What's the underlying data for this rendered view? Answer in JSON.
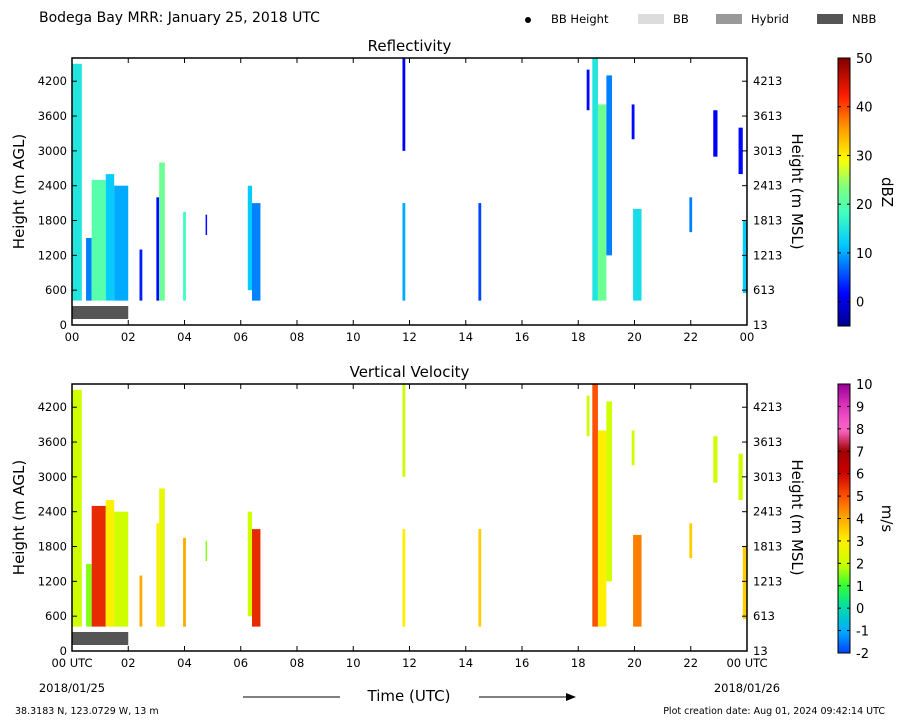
{
  "header": {
    "title": "Bodega Bay MRR:  January 25, 2018 UTC"
  },
  "legend": {
    "items": [
      {
        "label": "BB Height",
        "kind": "dot",
        "color": "#000000"
      },
      {
        "label": "BB",
        "kind": "swatch",
        "color": "#dcdcdc"
      },
      {
        "label": "Hybrid",
        "kind": "swatch",
        "color": "#999999"
      },
      {
        "label": "NBB",
        "kind": "swatch",
        "color": "#555555"
      }
    ]
  },
  "footer": {
    "location": "38.3183 N, 123.0729 W, 13 m",
    "creation": "Plot creation date: Aug 01, 2024 09:42:14 UTC",
    "date_start": "2018/01/25",
    "date_end": "2018/01/26",
    "xaxis_title": "Time (UTC)"
  },
  "chart_data": [
    {
      "type": "heatmap",
      "title": "Reflectivity",
      "ylabel": "Height (m AGL)",
      "ylabel_right": "Height (m MSL)",
      "colorbar_label": "dBZ",
      "xlim": [
        0,
        24
      ],
      "ylim": [
        0,
        4600
      ],
      "x_ticks": [
        "00",
        "02",
        "04",
        "06",
        "08",
        "10",
        "12",
        "14",
        "16",
        "18",
        "20",
        "22",
        "00"
      ],
      "y_ticks": [
        0,
        600,
        1200,
        1800,
        2400,
        3000,
        3600,
        4200
      ],
      "y_ticks_right": [
        13,
        613,
        1213,
        1813,
        2413,
        3013,
        3613,
        4213
      ],
      "colorbar": {
        "min": -5,
        "max": 50,
        "ticks": [
          0,
          10,
          20,
          30,
          40,
          50
        ]
      },
      "bb_type_bar": {
        "type": "NBB",
        "start": 0,
        "end": 2,
        "color": "#555555"
      },
      "echoes": [
        {
          "start": 0.0,
          "end": 0.35,
          "bottom": 420,
          "top": 4500,
          "value": 15
        },
        {
          "start": 0.5,
          "end": 0.7,
          "bottom": 420,
          "top": 1500,
          "value": 8
        },
        {
          "start": 0.7,
          "end": 1.2,
          "bottom": 420,
          "top": 2500,
          "value": 20
        },
        {
          "start": 1.2,
          "end": 1.5,
          "bottom": 420,
          "top": 2600,
          "value": 12
        },
        {
          "start": 1.5,
          "end": 2.0,
          "bottom": 420,
          "top": 2400,
          "value": 10
        },
        {
          "start": 2.4,
          "end": 2.5,
          "bottom": 420,
          "top": 1300,
          "value": 3
        },
        {
          "start": 3.0,
          "end": 3.1,
          "bottom": 420,
          "top": 2200,
          "value": 2
        },
        {
          "start": 3.1,
          "end": 3.3,
          "bottom": 420,
          "top": 2800,
          "value": 22
        },
        {
          "start": 3.95,
          "end": 4.05,
          "bottom": 420,
          "top": 1950,
          "value": 18
        },
        {
          "start": 4.75,
          "end": 4.8,
          "bottom": 1550,
          "top": 1900,
          "value": 2
        },
        {
          "start": 6.25,
          "end": 6.4,
          "bottom": 600,
          "top": 2400,
          "value": 12
        },
        {
          "start": 6.4,
          "end": 6.7,
          "bottom": 420,
          "top": 2100,
          "value": 8
        },
        {
          "start": 11.75,
          "end": 11.85,
          "bottom": 3000,
          "top": 4600,
          "value": 1
        },
        {
          "start": 11.75,
          "end": 11.85,
          "bottom": 420,
          "top": 2100,
          "value": 10
        },
        {
          "start": 14.45,
          "end": 14.55,
          "bottom": 420,
          "top": 2100,
          "value": 5
        },
        {
          "start": 18.3,
          "end": 18.4,
          "bottom": 3700,
          "top": 4400,
          "value": 2
        },
        {
          "start": 18.5,
          "end": 18.7,
          "bottom": 420,
          "top": 4600,
          "value": 15
        },
        {
          "start": 18.7,
          "end": 19.0,
          "bottom": 420,
          "top": 3800,
          "value": 22
        },
        {
          "start": 19.0,
          "end": 19.2,
          "bottom": 1200,
          "top": 4300,
          "value": 8
        },
        {
          "start": 19.9,
          "end": 20.0,
          "bottom": 3200,
          "top": 3800,
          "value": 2
        },
        {
          "start": 19.95,
          "end": 20.25,
          "bottom": 420,
          "top": 2000,
          "value": 14
        },
        {
          "start": 21.95,
          "end": 22.05,
          "bottom": 1600,
          "top": 2200,
          "value": 8
        },
        {
          "start": 22.8,
          "end": 22.95,
          "bottom": 2900,
          "top": 3700,
          "value": 1
        },
        {
          "start": 23.7,
          "end": 23.85,
          "bottom": 2600,
          "top": 3400,
          "value": 2
        },
        {
          "start": 23.85,
          "end": 24.0,
          "bottom": 550,
          "top": 1800,
          "value": 12
        }
      ]
    },
    {
      "type": "heatmap",
      "title": "Vertical Velocity",
      "ylabel": "Height (m AGL)",
      "ylabel_right": "Height (m MSL)",
      "colorbar_label": "m/s",
      "xlim": [
        0,
        24
      ],
      "ylim": [
        0,
        4600
      ],
      "x_ticks": [
        "00 UTC",
        "02",
        "04",
        "06",
        "08",
        "10",
        "12",
        "14",
        "16",
        "18",
        "20",
        "22",
        "00 UTC"
      ],
      "y_ticks": [
        0,
        600,
        1200,
        1800,
        2400,
        3000,
        3600,
        4200
      ],
      "y_ticks_right": [
        13,
        613,
        1213,
        1813,
        2413,
        3013,
        3613,
        4213
      ],
      "colorbar": {
        "min": -2,
        "max": 10,
        "ticks": [
          -2,
          -1,
          0,
          1,
          2,
          3,
          4,
          5,
          6,
          7,
          8,
          9,
          10
        ]
      },
      "bb_type_bar": {
        "type": "NBB",
        "start": 0,
        "end": 2,
        "color": "#555555"
      },
      "echoes": [
        {
          "start": 0.0,
          "end": 0.35,
          "bottom": 420,
          "top": 4500,
          "value": 2
        },
        {
          "start": 0.5,
          "end": 0.7,
          "bottom": 420,
          "top": 1500,
          "value": 1.5
        },
        {
          "start": 0.7,
          "end": 1.2,
          "bottom": 420,
          "top": 2500,
          "value": 5.5
        },
        {
          "start": 1.2,
          "end": 1.5,
          "bottom": 420,
          "top": 2600,
          "value": 3
        },
        {
          "start": 1.5,
          "end": 2.0,
          "bottom": 420,
          "top": 2400,
          "value": 2
        },
        {
          "start": 2.4,
          "end": 2.5,
          "bottom": 420,
          "top": 1300,
          "value": 4
        },
        {
          "start": 3.0,
          "end": 3.1,
          "bottom": 420,
          "top": 2200,
          "value": 3
        },
        {
          "start": 3.1,
          "end": 3.3,
          "bottom": 420,
          "top": 2800,
          "value": 2.5
        },
        {
          "start": 3.95,
          "end": 4.05,
          "bottom": 420,
          "top": 1950,
          "value": 4
        },
        {
          "start": 4.75,
          "end": 4.8,
          "bottom": 1550,
          "top": 1900,
          "value": 1.5
        },
        {
          "start": 6.25,
          "end": 6.4,
          "bottom": 600,
          "top": 2400,
          "value": 2
        },
        {
          "start": 6.4,
          "end": 6.7,
          "bottom": 420,
          "top": 2100,
          "value": 5.5
        },
        {
          "start": 11.75,
          "end": 11.85,
          "bottom": 3000,
          "top": 4600,
          "value": 2
        },
        {
          "start": 11.75,
          "end": 11.85,
          "bottom": 420,
          "top": 2100,
          "value": 3
        },
        {
          "start": 14.45,
          "end": 14.55,
          "bottom": 420,
          "top": 2100,
          "value": 3.5
        },
        {
          "start": 18.3,
          "end": 18.4,
          "bottom": 3700,
          "top": 4400,
          "value": 2
        },
        {
          "start": 18.5,
          "end": 18.7,
          "bottom": 420,
          "top": 4600,
          "value": 5
        },
        {
          "start": 18.7,
          "end": 19.0,
          "bottom": 420,
          "top": 3800,
          "value": 3
        },
        {
          "start": 19.0,
          "end": 19.2,
          "bottom": 1200,
          "top": 4300,
          "value": 2
        },
        {
          "start": 19.9,
          "end": 20.0,
          "bottom": 3200,
          "top": 3800,
          "value": 2
        },
        {
          "start": 19.95,
          "end": 20.25,
          "bottom": 420,
          "top": 2000,
          "value": 4.5
        },
        {
          "start": 21.95,
          "end": 22.05,
          "bottom": 1600,
          "top": 2200,
          "value": 3.5
        },
        {
          "start": 22.8,
          "end": 22.95,
          "bottom": 2900,
          "top": 3700,
          "value": 2
        },
        {
          "start": 23.7,
          "end": 23.85,
          "bottom": 2600,
          "top": 3400,
          "value": 2
        },
        {
          "start": 23.85,
          "end": 24.0,
          "bottom": 550,
          "top": 1800,
          "value": 3.5
        }
      ]
    }
  ]
}
